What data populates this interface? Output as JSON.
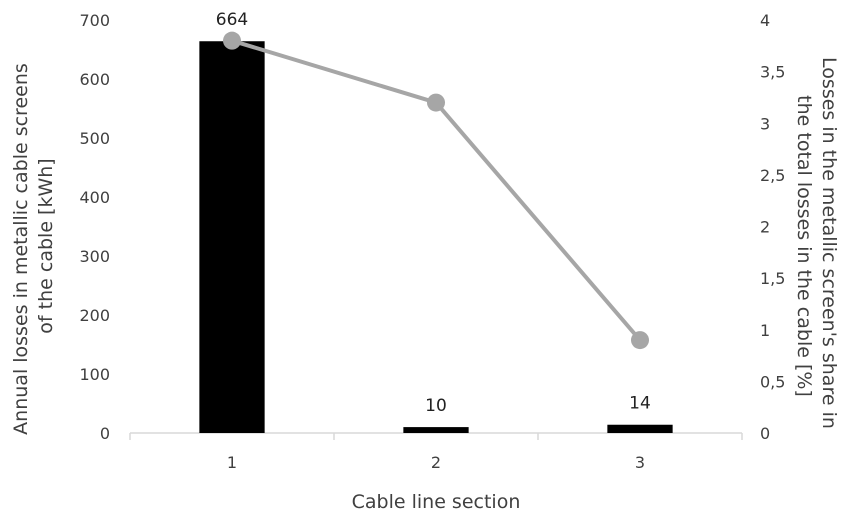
{
  "chart_data": {
    "type": "bar",
    "categories": [
      "1",
      "2",
      "3"
    ],
    "series": [
      {
        "type": "bar",
        "axis": "left",
        "values": [
          664,
          10,
          14
        ],
        "data_labels": [
          "664",
          "10",
          "14"
        ],
        "color": "#000000"
      },
      {
        "type": "line",
        "axis": "right",
        "values": [
          3.8,
          3.2,
          0.9
        ],
        "color": "#a6a6a6"
      }
    ],
    "xlabel": "Cable line section",
    "ylabel_left": [
      "Annual losses in metallic cable screens",
      "of the cable [kWh]"
    ],
    "ylabel_right": [
      "Losses in the metallic screen's share in",
      "the total losses in the cable [%]"
    ],
    "ylim_left": [
      0,
      700
    ],
    "ylim_right": [
      0,
      4
    ],
    "yticks_left": [
      "0",
      "100",
      "200",
      "300",
      "400",
      "500",
      "600",
      "700"
    ],
    "yticks_right": [
      "0",
      "0,5",
      "1",
      "1,5",
      "2",
      "2,5",
      "3",
      "3,5",
      "4"
    ],
    "grid": false,
    "legend": "none"
  }
}
